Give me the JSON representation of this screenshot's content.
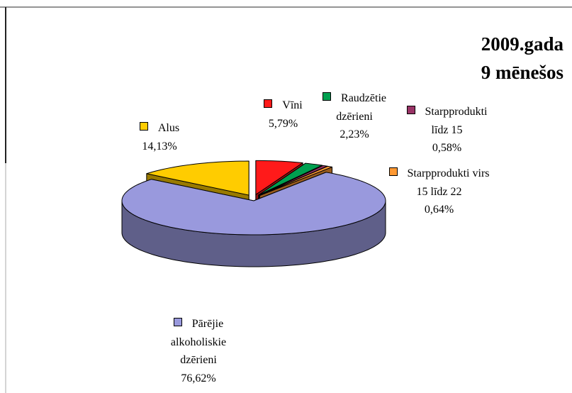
{
  "chart_data": {
    "type": "pie",
    "title": [
      "2009.gada",
      "9 mēnešos"
    ],
    "categories": [
      "Alus",
      "Vīni",
      "Raudzētie dzērieni",
      "Starpprodukti līdz 15",
      "Starpprodukti virs 15 līdz 22",
      "Pārējie alkoholiskie dzērieni"
    ],
    "values": [
      14.13,
      5.79,
      2.23,
      0.58,
      0.64,
      76.62
    ],
    "value_labels": [
      "14,13%",
      "5,79%",
      "2,23%",
      "0,58%",
      "0,64%",
      "76,62%"
    ],
    "colors": [
      "#FFCC00",
      "#FF1A1A",
      "#00A050",
      "#993366",
      "#FF9933",
      "#9999DD"
    ]
  }
}
